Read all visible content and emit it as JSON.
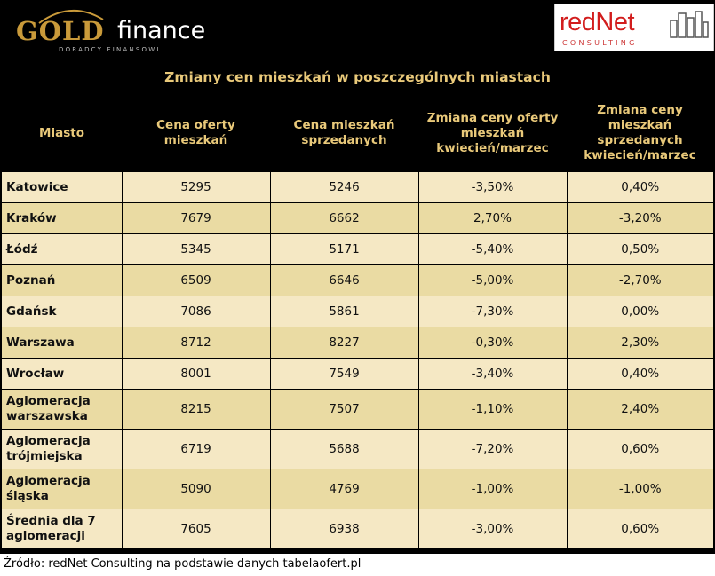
{
  "logos": {
    "left_gold": "GOLD",
    "left_finance": "finance",
    "left_subtitle": "DORADCY FINANSOWI",
    "right_name": "redNet",
    "right_subtitle": "CONSULTING"
  },
  "title": "Zmiany cen mieszkań w poszczególnych miastach",
  "table": {
    "headers": [
      "Miasto",
      "Cena oferty mieszkań",
      "Cena mieszkań sprzedanych",
      "Zmiana ceny oferty mieszkań kwiecień/marzec",
      "Zmiana ceny mieszkań sprzedanych kwiecień/marzec"
    ],
    "rows": [
      [
        "Katowice",
        "5295",
        "5246",
        "-3,50%",
        "0,40%"
      ],
      [
        "Kraków",
        "7679",
        "6662",
        "2,70%",
        "-3,20%"
      ],
      [
        "Łódź",
        "5345",
        "5171",
        "-5,40%",
        "0,50%"
      ],
      [
        "Poznań",
        "6509",
        "6646",
        "-5,00%",
        "-2,70%"
      ],
      [
        "Gdańsk",
        "7086",
        "5861",
        "-7,30%",
        "0,00%"
      ],
      [
        "Warszawa",
        "8712",
        "8227",
        "-0,30%",
        "2,30%"
      ],
      [
        "Wrocław",
        "8001",
        "7549",
        "-3,40%",
        "0,40%"
      ],
      [
        "Aglomeracja warszawska",
        "8215",
        "7507",
        "-1,10%",
        "2,40%"
      ],
      [
        "Aglomeracja trójmiejska",
        "6719",
        "5688",
        "-7,20%",
        "0,60%"
      ],
      [
        "Aglomeracja śląska",
        "5090",
        "4769",
        "-1,00%",
        "-1,00%"
      ],
      [
        "Średnia dla 7 aglomeracji",
        "7605",
        "6938",
        "-3,00%",
        "0,60%"
      ]
    ]
  },
  "source": "Źródło: redNet Consulting na podstawie danych tabelaofert.pl",
  "colors": {
    "background": "#000000",
    "header_text": "#e9c97a",
    "row_light": "#f5e8c4",
    "row_dark": "#eadba3",
    "brand_gold": "#c99a3a",
    "brand_red": "#d21d1d"
  }
}
